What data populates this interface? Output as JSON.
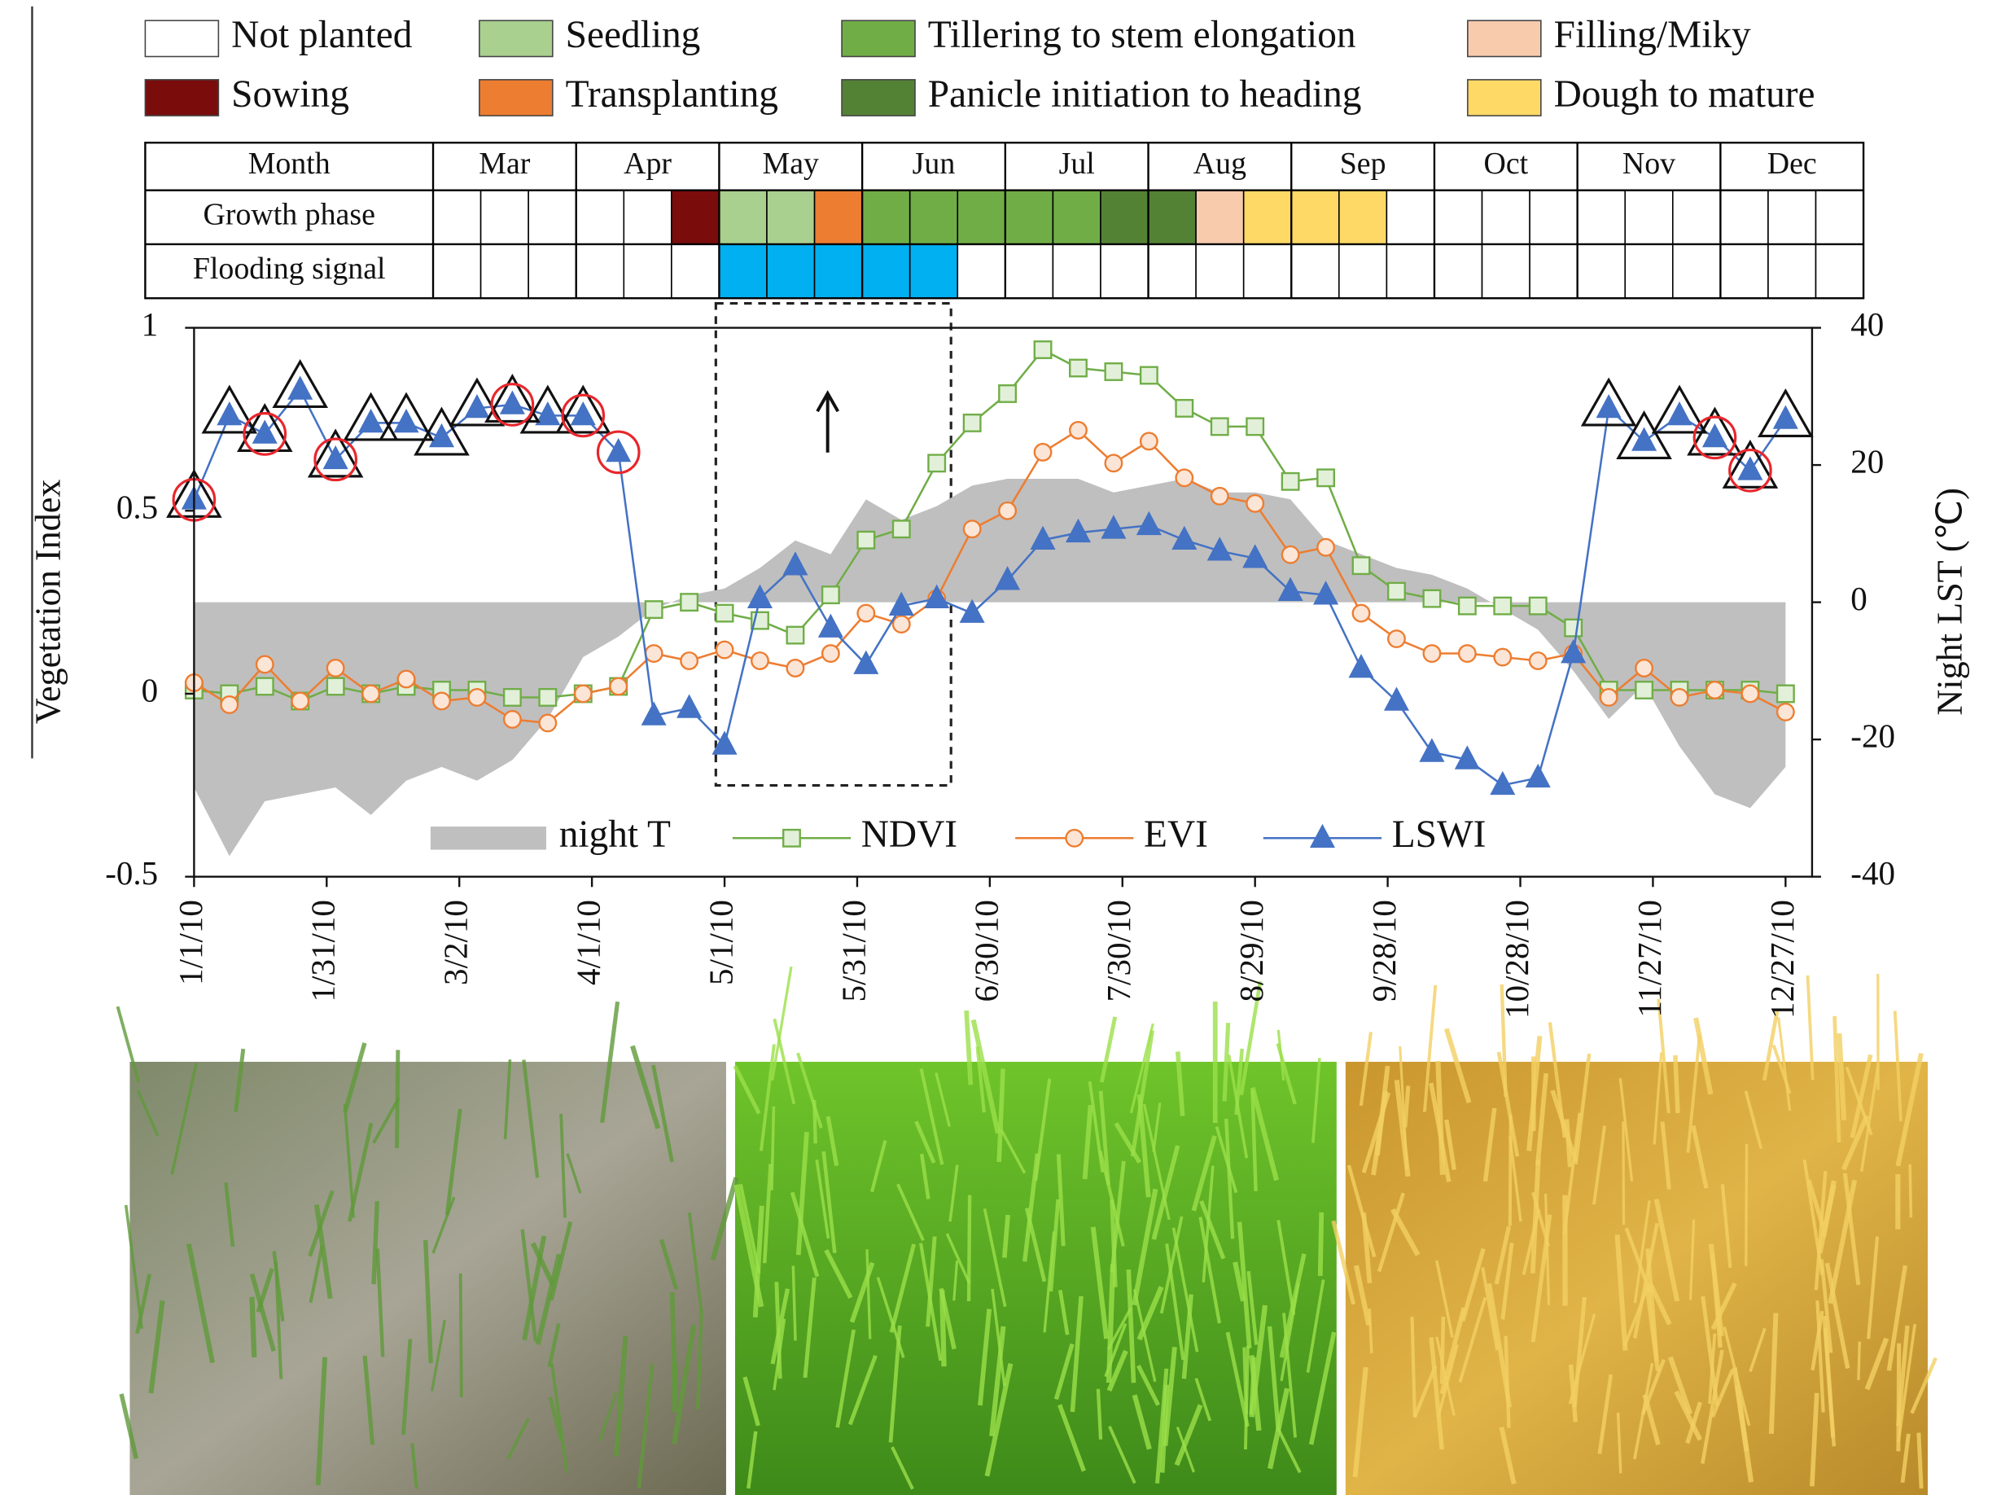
{
  "legend": {
    "items": [
      {
        "name": "Not planted",
        "color": "#ffffff"
      },
      {
        "name": "Sowing",
        "color": "#7b0c0c"
      },
      {
        "name": "Seedling",
        "color": "#a9d08e"
      },
      {
        "name": "Transplanting",
        "color": "#ed7d31"
      },
      {
        "name": "Tillering to stem elongation",
        "color": "#70ad47"
      },
      {
        "name": "Panicle initiation to heading",
        "color": "#548235"
      },
      {
        "name": "Filling/Miky",
        "color": "#f8cbad"
      },
      {
        "name": "Dough to mature",
        "color": "#ffd966"
      }
    ]
  },
  "phase_table": {
    "header": "Month",
    "months": [
      "Mar",
      "Apr",
      "May",
      "Jun",
      "Jul",
      "Aug",
      "Sep",
      "Oct",
      "Nov",
      "Dec"
    ],
    "row_labels": [
      "Growth phase",
      "Flooding signal"
    ],
    "growth_cells": [
      0,
      0,
      0,
      0,
      0,
      1,
      2,
      2,
      3,
      4,
      4,
      4,
      4,
      4,
      5,
      5,
      6,
      7,
      7,
      7,
      0,
      0,
      0,
      0,
      0,
      0,
      0,
      0,
      0,
      0
    ],
    "flooding_cells": [
      0,
      0,
      0,
      0,
      0,
      0,
      1,
      1,
      1,
      1,
      1,
      0,
      0,
      0,
      0,
      0,
      0,
      0,
      0,
      0,
      0,
      0,
      0,
      0,
      0,
      0,
      0,
      0,
      0,
      0
    ],
    "flooding_color": "#00b0f0"
  },
  "chart_data": {
    "type": "line",
    "x": [
      "2010-01-01",
      "2010-01-09",
      "2010-01-17",
      "2010-01-25",
      "2010-02-02",
      "2010-02-10",
      "2010-02-18",
      "2010-02-26",
      "2010-03-06",
      "2010-03-14",
      "2010-03-22",
      "2010-03-30",
      "2010-04-07",
      "2010-04-15",
      "2010-04-23",
      "2010-05-01",
      "2010-05-09",
      "2010-05-17",
      "2010-05-25",
      "2010-06-02",
      "2010-06-10",
      "2010-06-18",
      "2010-06-26",
      "2010-07-04",
      "2010-07-12",
      "2010-07-20",
      "2010-07-28",
      "2010-08-05",
      "2010-08-13",
      "2010-08-21",
      "2010-08-29",
      "2010-09-06",
      "2010-09-14",
      "2010-09-22",
      "2010-09-30",
      "2010-10-08",
      "2010-10-16",
      "2010-10-24",
      "2010-11-01",
      "2010-11-09",
      "2010-11-17",
      "2010-11-25",
      "2010-12-03",
      "2010-12-11",
      "2010-12-19",
      "2010-12-27"
    ],
    "xlim": [
      "2010-01-01",
      "2011-01-02"
    ],
    "xticks": [
      {
        "value": "2010-01-01",
        "label": "1/1/10"
      },
      {
        "value": "2010-01-31",
        "label": "1/31/10"
      },
      {
        "value": "2010-03-02",
        "label": "3/2/10"
      },
      {
        "value": "2010-04-01",
        "label": "4/1/10"
      },
      {
        "value": "2010-05-01",
        "label": "5/1/10"
      },
      {
        "value": "2010-05-31",
        "label": "5/31/10"
      },
      {
        "value": "2010-06-30",
        "label": "6/30/10"
      },
      {
        "value": "2010-07-30",
        "label": "7/30/10"
      },
      {
        "value": "2010-08-29",
        "label": "8/29/10"
      },
      {
        "value": "2010-09-28",
        "label": "9/28/10"
      },
      {
        "value": "2010-10-28",
        "label": "10/28/10"
      },
      {
        "value": "2010-11-27",
        "label": "11/27/10"
      },
      {
        "value": "2010-12-27",
        "label": "12/27/10"
      }
    ],
    "ylabel": "Vegetation Index",
    "ylim": [
      -0.5,
      1
    ],
    "yticks": [
      -0.5,
      0,
      0.5,
      1
    ],
    "y2label": "Night LST (℃)",
    "y2lim": [
      -40,
      40
    ],
    "y2ticks": [
      -40,
      -20,
      0,
      20,
      40
    ],
    "series": [
      {
        "name": "night T",
        "color": "#bfbfbf",
        "style": "area",
        "axis": "y2",
        "values": [
          -27,
          -37,
          -29,
          -28,
          -27,
          -31,
          -26,
          -24,
          -26,
          -23,
          -17,
          -8,
          -5,
          -1,
          1,
          2,
          5,
          9,
          7,
          15,
          12,
          14,
          17,
          18,
          18,
          18,
          16,
          17,
          18,
          16,
          16,
          15,
          9,
          7,
          5,
          4,
          2,
          -1,
          -4,
          -10,
          -17,
          -12,
          -21,
          -28,
          -30,
          -24
        ]
      },
      {
        "name": "NDVI",
        "color": "#70ad47",
        "marker": "square",
        "values": [
          0.01,
          0,
          0.02,
          -0.02,
          0.02,
          0,
          0.02,
          0.01,
          0.01,
          -0.01,
          -0.01,
          0,
          0.02,
          0.23,
          0.25,
          0.22,
          0.2,
          0.16,
          0.27,
          0.42,
          0.45,
          0.63,
          0.74,
          0.82,
          0.94,
          0.89,
          0.88,
          0.87,
          0.78,
          0.73,
          0.73,
          0.58,
          0.59,
          0.35,
          0.28,
          0.26,
          0.24,
          0.24,
          0.24,
          0.18,
          0.01,
          0.01,
          0.01,
          0.01,
          0.01,
          0
        ]
      },
      {
        "name": "EVI",
        "color": "#ed7d31",
        "marker": "circle",
        "values": [
          0.03,
          -0.03,
          0.08,
          -0.02,
          0.07,
          0,
          0.04,
          -0.02,
          -0.01,
          -0.07,
          -0.08,
          0,
          0.02,
          0.11,
          0.09,
          0.12,
          0.09,
          0.07,
          0.11,
          0.22,
          0.19,
          0.26,
          0.45,
          0.5,
          0.66,
          0.72,
          0.63,
          0.69,
          0.59,
          0.54,
          0.52,
          0.38,
          0.4,
          0.22,
          0.15,
          0.11,
          0.11,
          0.1,
          0.09,
          0.11,
          -0.01,
          0.07,
          -0.01,
          0.01,
          0,
          -0.05
        ]
      },
      {
        "name": "LSWI",
        "color": "#4472c4",
        "marker": "triangle",
        "values": [
          0.53,
          0.76,
          0.71,
          0.83,
          0.64,
          0.74,
          0.74,
          0.7,
          0.78,
          0.79,
          0.76,
          0.76,
          0.66,
          -0.06,
          -0.04,
          -0.14,
          0.26,
          0.35,
          0.18,
          0.08,
          0.24,
          0.26,
          0.22,
          0.31,
          0.42,
          0.44,
          0.45,
          0.46,
          0.42,
          0.39,
          0.37,
          0.28,
          0.27,
          0.07,
          -0.02,
          -0.16,
          -0.18,
          -0.25,
          -0.23,
          0.11,
          0.78,
          0.69,
          0.76,
          0.7,
          0.61,
          0.75
        ]
      }
    ],
    "annotations": {
      "series": 3,
      "triangle": [
        0,
        1,
        2,
        3,
        4,
        5,
        6,
        7,
        8,
        9,
        10,
        11,
        40,
        41,
        42,
        43,
        44,
        45
      ],
      "circle": [
        0,
        2,
        4,
        9,
        11,
        12,
        43,
        44
      ]
    }
  }
}
